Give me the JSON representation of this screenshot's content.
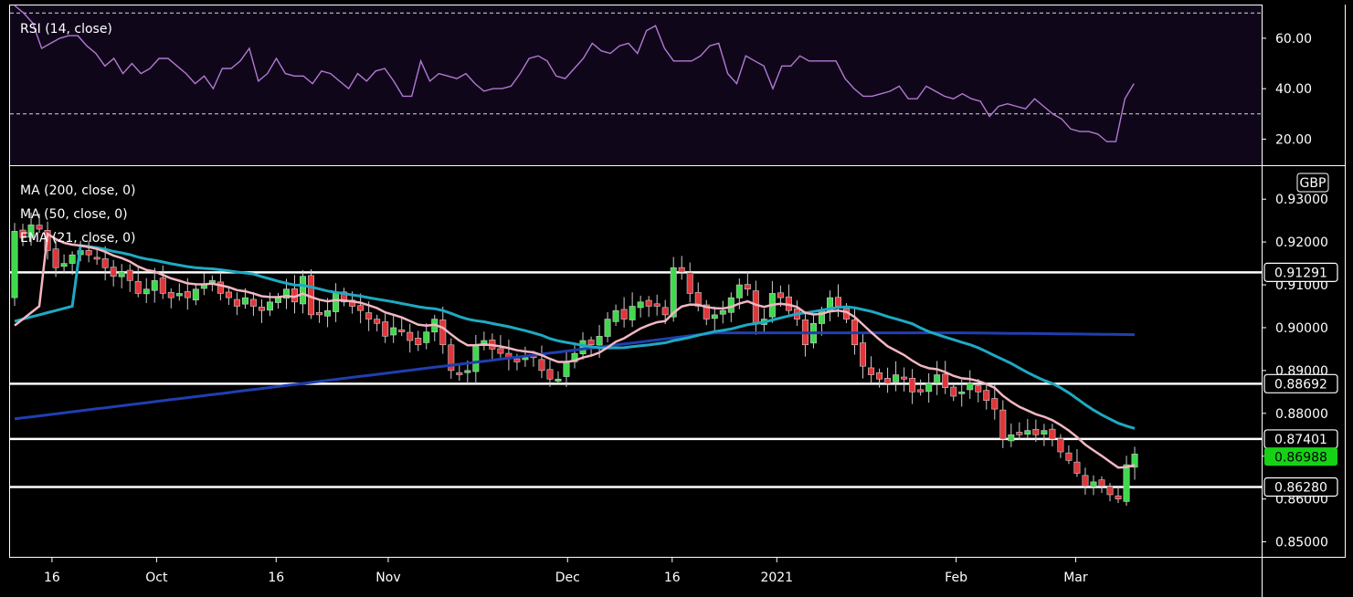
{
  "chart_data": [
    {
      "type": "line",
      "legend": "RSI (14, close)",
      "ylim": [
        10,
        73
      ],
      "yticks": [
        "60.00",
        "40.00",
        "20.00"
      ],
      "levels": [
        70,
        30
      ],
      "values": [
        73,
        70,
        66,
        56,
        58,
        60,
        61,
        61,
        57,
        54,
        49,
        52,
        46,
        50,
        46,
        48,
        52,
        52,
        49,
        46,
        42,
        45,
        40,
        48,
        48,
        51,
        56,
        43,
        46,
        52,
        46,
        45,
        45,
        42,
        47,
        46,
        43,
        40,
        46,
        43,
        47,
        48,
        43,
        37,
        37,
        51,
        43,
        46,
        45,
        44,
        46,
        42,
        39,
        40,
        40,
        41,
        46,
        52,
        53,
        51,
        45,
        44,
        48,
        52,
        58,
        55,
        54,
        57,
        58,
        54,
        63,
        65,
        56,
        51,
        51,
        51,
        53,
        57,
        58,
        46,
        42,
        53,
        51,
        49,
        40,
        49,
        49,
        53,
        51,
        51,
        51,
        51,
        44,
        40,
        37,
        37,
        38,
        39,
        41,
        36,
        36,
        41,
        39,
        37,
        36,
        38,
        36,
        35,
        29,
        33,
        34,
        33,
        32,
        36,
        33,
        30,
        28,
        24,
        23,
        23,
        22,
        19,
        19,
        36,
        42
      ]
    },
    {
      "type": "candlestick",
      "legend": [
        "MA (200, close, 0)",
        "MA (50, close, 0)",
        "EMA (21, close, 0)"
      ],
      "currency": "GBP",
      "ylim": [
        0.8465,
        0.9375
      ],
      "yticks": [
        "0.93000",
        "0.92000",
        "0.91000",
        "0.90000",
        "0.89000",
        "0.88000",
        "0.87000",
        "0.86000",
        "0.85000"
      ],
      "xticks": [
        "16",
        "Oct",
        "16",
        "Nov",
        "Dec",
        "16",
        "2021",
        "Feb",
        "Mar"
      ],
      "xtick_slots": [
        5,
        19,
        35,
        50,
        74,
        88,
        102,
        126,
        142
      ],
      "first_slot": 0,
      "slot_count": 151,
      "horizontal_levels": [
        {
          "label": "0.91291",
          "value": 0.91291,
          "color": "#ffffff",
          "text": "#ffffff"
        },
        {
          "label": "0.88692",
          "value": 0.88692,
          "color": "#ffffff",
          "text": "#ffffff"
        },
        {
          "label": "0.87401",
          "value": 0.87401,
          "color": "#ffffff",
          "text": "#ffffff"
        },
        {
          "label": "0.86280",
          "value": 0.8628,
          "color": "#ffffff",
          "text": "#ffffff"
        }
      ],
      "last_price": {
        "label": "0.86988",
        "value": 0.86988,
        "color": "#17d117"
      },
      "colors": {
        "up": "#3fd94c",
        "down": "#e0363a",
        "ma200": "#1f3fb0",
        "ma50": "#1fa9c2",
        "ema21": "#f2b7c2",
        "rsi": "#b07ad1"
      },
      "closes": [
        0.9225,
        0.921,
        0.924,
        0.923,
        0.918,
        0.914,
        0.915,
        0.917,
        0.918,
        0.917,
        0.916,
        0.914,
        0.912,
        0.913,
        0.911,
        0.908,
        0.909,
        0.911,
        0.908,
        0.907,
        0.908,
        0.907,
        0.909,
        0.91,
        0.911,
        0.908,
        0.907,
        0.905,
        0.907,
        0.905,
        0.904,
        0.906,
        0.907,
        0.909,
        0.906,
        0.912,
        0.903,
        0.903,
        0.904,
        0.908,
        0.906,
        0.905,
        0.904,
        0.902,
        0.901,
        0.898,
        0.9,
        0.899,
        0.897,
        0.896,
        0.899,
        0.902,
        0.896,
        0.89,
        0.889,
        0.89,
        0.896,
        0.897,
        0.895,
        0.894,
        0.893,
        0.892,
        0.893,
        0.893,
        0.89,
        0.888,
        0.888,
        0.892,
        0.894,
        0.897,
        0.896,
        0.898,
        0.902,
        0.904,
        0.902,
        0.905,
        0.906,
        0.905,
        0.905,
        0.903,
        0.914,
        0.913,
        0.908,
        0.905,
        0.902,
        0.903,
        0.904,
        0.907,
        0.91,
        0.909,
        0.901,
        0.902,
        0.908,
        0.907,
        0.904,
        0.902,
        0.896,
        0.901,
        0.904,
        0.907,
        0.905,
        0.902,
        0.896,
        0.891,
        0.889,
        0.888,
        0.887,
        0.889,
        0.888,
        0.885,
        0.885,
        0.887,
        0.889,
        0.886,
        0.884,
        0.885,
        0.887,
        0.885,
        0.883,
        0.881,
        0.874,
        0.875,
        0.875,
        0.876,
        0.875,
        0.876,
        0.874,
        0.871,
        0.869,
        0.866,
        0.863,
        0.864,
        0.863,
        0.861,
        0.86,
        0.868,
        0.8705
      ]
    }
  ]
}
